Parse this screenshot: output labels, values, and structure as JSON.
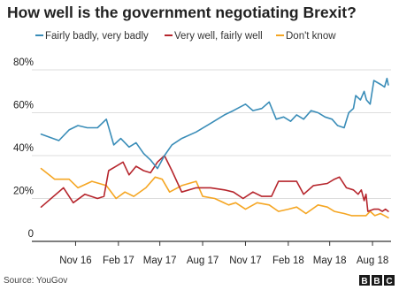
{
  "colors": {
    "background": "#ffffff",
    "grid": "#dddddd",
    "axis": "#333333",
    "text": "#222222",
    "logo_box": "#1a1a1a"
  },
  "logo": {
    "letters": [
      "B",
      "B",
      "C"
    ]
  },
  "source": "Source: YouGov",
  "chart_data": {
    "type": "line",
    "title": "How well is the government negotiating Brexit?",
    "xlabel": "",
    "ylabel": "",
    "ylim": [
      0,
      80
    ],
    "y_ticks": [
      0,
      20,
      40,
      60,
      80
    ],
    "y_tick_labels": [
      "0",
      "20%",
      "40%",
      "60%",
      "80%"
    ],
    "grid": "horizontal",
    "legend_position": "top",
    "x_range": [
      "2016-09-01",
      "2018-09-20"
    ],
    "x_ticks": [
      {
        "date": "2016-11-15",
        "label": "Nov 16"
      },
      {
        "date": "2017-02-15",
        "label": "Feb 17"
      },
      {
        "date": "2017-05-15",
        "label": "May 17"
      },
      {
        "date": "2017-08-15",
        "label": "Aug 17"
      },
      {
        "date": "2017-11-15",
        "label": "Nov 17"
      },
      {
        "date": "2018-02-15",
        "label": "Feb 18"
      },
      {
        "date": "2018-05-15",
        "label": "May 18"
      },
      {
        "date": "2018-08-15",
        "label": "Aug 18"
      }
    ],
    "series": [
      {
        "name": "Fairly badly, very badly",
        "color": "#3a8db8",
        "points": [
          [
            "2016-09-02",
            50
          ],
          [
            "2016-10-10",
            47
          ],
          [
            "2016-11-01",
            52
          ],
          [
            "2016-11-20",
            54
          ],
          [
            "2016-12-10",
            53
          ],
          [
            "2017-01-01",
            53
          ],
          [
            "2017-01-20",
            57
          ],
          [
            "2017-02-05",
            45
          ],
          [
            "2017-02-20",
            48
          ],
          [
            "2017-03-10",
            44
          ],
          [
            "2017-03-25",
            46
          ],
          [
            "2017-04-10",
            41
          ],
          [
            "2017-04-25",
            38
          ],
          [
            "2017-05-10",
            34
          ],
          [
            "2017-05-25",
            40
          ],
          [
            "2017-06-10",
            45
          ],
          [
            "2017-07-01",
            48
          ],
          [
            "2017-08-01",
            51
          ],
          [
            "2017-09-01",
            55
          ],
          [
            "2017-10-01",
            59
          ],
          [
            "2017-10-20",
            61
          ],
          [
            "2017-11-15",
            64
          ],
          [
            "2017-12-01",
            61
          ],
          [
            "2017-12-20",
            62
          ],
          [
            "2018-01-05",
            65
          ],
          [
            "2018-01-20",
            57
          ],
          [
            "2018-02-05",
            58
          ],
          [
            "2018-02-20",
            56
          ],
          [
            "2018-03-05",
            59
          ],
          [
            "2018-03-20",
            57
          ],
          [
            "2018-04-05",
            61
          ],
          [
            "2018-04-20",
            60
          ],
          [
            "2018-05-05",
            58
          ],
          [
            "2018-05-20",
            57
          ],
          [
            "2018-06-01",
            54
          ],
          [
            "2018-06-15",
            53
          ],
          [
            "2018-06-25",
            60
          ],
          [
            "2018-07-05",
            62
          ],
          [
            "2018-07-10",
            68
          ],
          [
            "2018-07-20",
            66
          ],
          [
            "2018-07-28",
            70
          ],
          [
            "2018-08-02",
            66
          ],
          [
            "2018-08-10",
            64
          ],
          [
            "2018-08-18",
            75
          ],
          [
            "2018-08-26",
            74
          ],
          [
            "2018-09-03",
            73
          ],
          [
            "2018-09-10",
            72
          ],
          [
            "2018-09-15",
            76
          ],
          [
            "2018-09-18",
            73
          ]
        ]
      },
      {
        "name": "Very well, fairly well",
        "color": "#b6262d",
        "points": [
          [
            "2016-09-02",
            16
          ],
          [
            "2016-10-20",
            25
          ],
          [
            "2016-11-10",
            18
          ],
          [
            "2016-12-05",
            22
          ],
          [
            "2017-01-01",
            20
          ],
          [
            "2017-01-15",
            21
          ],
          [
            "2017-01-25",
            33
          ],
          [
            "2017-02-10",
            35
          ],
          [
            "2017-02-25",
            37
          ],
          [
            "2017-03-10",
            31
          ],
          [
            "2017-03-25",
            35
          ],
          [
            "2017-04-10",
            33
          ],
          [
            "2017-04-25",
            32
          ],
          [
            "2017-05-10",
            37
          ],
          [
            "2017-05-25",
            40
          ],
          [
            "2017-06-10",
            33
          ],
          [
            "2017-07-01",
            23
          ],
          [
            "2017-08-01",
            25
          ],
          [
            "2017-09-01",
            25
          ],
          [
            "2017-10-01",
            24
          ],
          [
            "2017-10-20",
            23
          ],
          [
            "2017-11-10",
            20
          ],
          [
            "2017-12-01",
            23
          ],
          [
            "2017-12-20",
            21
          ],
          [
            "2018-01-10",
            21
          ],
          [
            "2018-01-25",
            28
          ],
          [
            "2018-02-15",
            28
          ],
          [
            "2018-03-05",
            28
          ],
          [
            "2018-03-20",
            22
          ],
          [
            "2018-04-10",
            26
          ],
          [
            "2018-05-10",
            27
          ],
          [
            "2018-05-25",
            29
          ],
          [
            "2018-06-05",
            30
          ],
          [
            "2018-06-20",
            25
          ],
          [
            "2018-07-05",
            24
          ],
          [
            "2018-07-15",
            22
          ],
          [
            "2018-07-22",
            24
          ],
          [
            "2018-07-28",
            19
          ],
          [
            "2018-08-01",
            22
          ],
          [
            "2018-08-05",
            14
          ],
          [
            "2018-08-18",
            15
          ],
          [
            "2018-08-28",
            15
          ],
          [
            "2018-09-05",
            14
          ],
          [
            "2018-09-12",
            15
          ],
          [
            "2018-09-18",
            14
          ]
        ]
      },
      {
        "name": "Don't know",
        "color": "#f5a623",
        "points": [
          [
            "2016-09-02",
            34
          ],
          [
            "2016-10-01",
            29
          ],
          [
            "2016-11-01",
            29
          ],
          [
            "2016-11-20",
            25
          ],
          [
            "2016-12-20",
            28
          ],
          [
            "2017-01-20",
            26
          ],
          [
            "2017-02-10",
            20
          ],
          [
            "2017-03-01",
            23
          ],
          [
            "2017-03-20",
            21
          ],
          [
            "2017-04-15",
            25
          ],
          [
            "2017-05-05",
            30
          ],
          [
            "2017-05-20",
            29
          ],
          [
            "2017-06-05",
            23
          ],
          [
            "2017-07-01",
            26
          ],
          [
            "2017-08-01",
            28
          ],
          [
            "2017-08-15",
            21
          ],
          [
            "2017-09-10",
            20
          ],
          [
            "2017-10-10",
            17
          ],
          [
            "2017-10-25",
            18
          ],
          [
            "2017-11-15",
            15
          ],
          [
            "2017-12-10",
            18
          ],
          [
            "2018-01-05",
            17
          ],
          [
            "2018-01-25",
            14
          ],
          [
            "2018-02-15",
            15
          ],
          [
            "2018-03-05",
            16
          ],
          [
            "2018-03-25",
            13
          ],
          [
            "2018-04-20",
            17
          ],
          [
            "2018-05-10",
            16
          ],
          [
            "2018-05-25",
            14
          ],
          [
            "2018-06-15",
            13
          ],
          [
            "2018-07-01",
            12
          ],
          [
            "2018-07-20",
            12
          ],
          [
            "2018-08-01",
            12
          ],
          [
            "2018-08-10",
            14
          ],
          [
            "2018-08-20",
            12
          ],
          [
            "2018-09-01",
            13
          ],
          [
            "2018-09-10",
            12
          ],
          [
            "2018-09-18",
            11
          ]
        ]
      }
    ]
  }
}
